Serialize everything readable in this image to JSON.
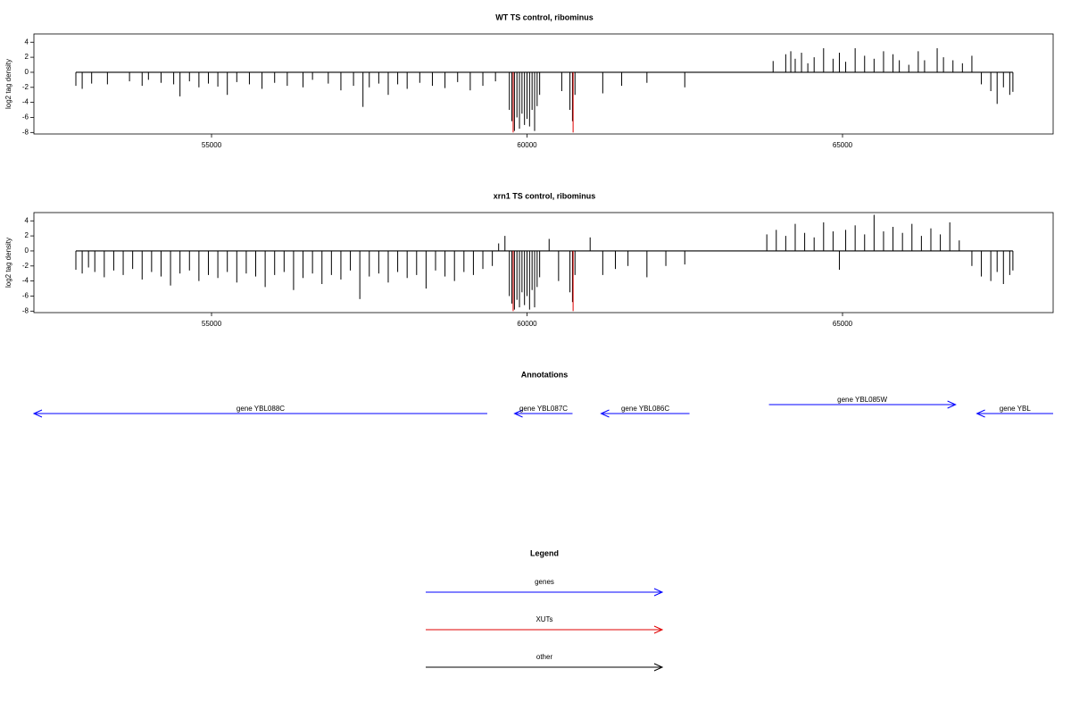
{
  "chart_data": [
    {
      "type": "bar",
      "title": "WT TS control, ribominus",
      "ylabel": "log2 tag density",
      "xlim": [
        52185,
        68338
      ],
      "ylim": [
        -8.2,
        5.1
      ],
      "xticks": [
        55000,
        60000,
        65000
      ],
      "yticks": [
        -8,
        -6,
        -4,
        -2,
        0,
        2,
        4
      ],
      "series": [
        {
          "color": "#000000",
          "x": [
            52850,
            52950,
            53100,
            53350,
            53700,
            53900,
            54000,
            54200,
            54400,
            54500,
            54650,
            54800,
            54950,
            55100,
            55250,
            55400,
            55600,
            55800,
            56000,
            56200,
            56450,
            56600,
            56850,
            57050,
            57250,
            57400,
            57500,
            57650,
            57800,
            57950,
            58100,
            58300,
            58500,
            58700,
            58900,
            59100,
            59300,
            59500,
            59720,
            59760,
            59800,
            59840,
            59880,
            59920,
            59960,
            60000,
            60040,
            60080,
            60120,
            60160,
            60200,
            60550,
            60680,
            60720,
            60760,
            61200,
            61500,
            61900,
            62500,
            63900,
            64100,
            64180,
            64250,
            64350,
            64450,
            64550,
            64700,
            64850,
            64950,
            65050,
            65200,
            65350,
            65500,
            65650,
            65800,
            65900,
            66050,
            66200,
            66300,
            66500,
            66600,
            66750,
            66900,
            67050,
            67200,
            67350,
            67450,
            67550,
            67650,
            67700
          ],
          "values": [
            -1.8,
            -2.2,
            -1.5,
            -1.6,
            -1.2,
            -1.8,
            -1.0,
            -1.4,
            -1.6,
            -3.2,
            -1.2,
            -2.0,
            -1.5,
            -1.9,
            -3.0,
            -1.3,
            -1.6,
            -2.2,
            -1.4,
            -1.8,
            -2.0,
            -1.0,
            -1.5,
            -2.4,
            -1.8,
            -4.6,
            -2.0,
            -1.5,
            -3.0,
            -1.6,
            -2.2,
            -1.4,
            -1.8,
            -2.1,
            -1.3,
            -2.4,
            -1.8,
            -1.2,
            -5.0,
            -6.5,
            -7.8,
            -6.0,
            -7.5,
            -5.5,
            -7.0,
            -6.2,
            -7.2,
            -5.0,
            -7.8,
            -4.5,
            -3.0,
            -2.5,
            -5.0,
            -6.5,
            -3.0,
            -2.8,
            -1.8,
            -1.4,
            -2.0,
            1.5,
            2.4,
            2.8,
            1.8,
            2.6,
            1.2,
            2.0,
            3.2,
            1.8,
            2.6,
            1.4,
            3.2,
            2.2,
            1.8,
            2.8,
            2.4,
            1.6,
            1.0,
            2.8,
            1.6,
            3.2,
            2.0,
            1.6,
            1.2,
            2.2,
            -1.6,
            -2.5,
            -4.2,
            -2.0,
            -3.0,
            -2.6
          ]
        },
        {
          "color": "#e00000",
          "x": [
            59780,
            60730
          ],
          "values": [
            -8,
            -8
          ]
        }
      ]
    },
    {
      "type": "bar",
      "title": "xrn1 TS control, ribominus",
      "ylabel": "log2 tag density",
      "xlim": [
        52185,
        68338
      ],
      "ylim": [
        -8.2,
        5.1
      ],
      "xticks": [
        55000,
        60000,
        65000
      ],
      "yticks": [
        -8,
        -6,
        -4,
        -2,
        0,
        2,
        4
      ],
      "series": [
        {
          "color": "#000000",
          "x": [
            52850,
            52950,
            53050,
            53150,
            53300,
            53450,
            53600,
            53750,
            53900,
            54050,
            54200,
            54350,
            54500,
            54650,
            54800,
            54950,
            55100,
            55250,
            55400,
            55550,
            55700,
            55850,
            56000,
            56150,
            56300,
            56450,
            56600,
            56750,
            56900,
            57050,
            57200,
            57350,
            57500,
            57650,
            57800,
            57950,
            58100,
            58250,
            58400,
            58550,
            58700,
            58850,
            59000,
            59150,
            59300,
            59450,
            59550,
            59650,
            59720,
            59760,
            59800,
            59840,
            59880,
            59920,
            59960,
            60000,
            60040,
            60080,
            60120,
            60160,
            60200,
            60350,
            60500,
            60680,
            60720,
            60760,
            61000,
            61200,
            61400,
            61600,
            61900,
            62200,
            62500,
            63800,
            63950,
            64100,
            64250,
            64400,
            64550,
            64700,
            64850,
            64950,
            65050,
            65200,
            65350,
            65500,
            65650,
            65800,
            65950,
            66100,
            66250,
            66400,
            66550,
            66700,
            66850,
            67050,
            67200,
            67350,
            67450,
            67550,
            67650,
            67700
          ],
          "values": [
            -2.5,
            -3.0,
            -2.2,
            -2.8,
            -3.5,
            -2.6,
            -3.2,
            -2.4,
            -3.8,
            -2.8,
            -3.4,
            -4.6,
            -3.0,
            -2.6,
            -4.0,
            -3.2,
            -3.6,
            -2.8,
            -4.2,
            -3.0,
            -3.4,
            -4.8,
            -3.2,
            -2.8,
            -5.2,
            -3.6,
            -3.0,
            -4.4,
            -3.2,
            -3.8,
            -2.6,
            -6.4,
            -3.4,
            -3.0,
            -4.2,
            -2.8,
            -3.6,
            -3.2,
            -5.0,
            -2.6,
            -3.4,
            -4.0,
            -2.8,
            -3.2,
            -2.4,
            -2.0,
            1.0,
            2.0,
            -6.0,
            -7.0,
            -7.8,
            -6.5,
            -7.5,
            -5.5,
            -7.2,
            -6.0,
            -7.8,
            -5.2,
            -7.5,
            -4.8,
            -3.5,
            1.6,
            -4.0,
            -5.5,
            -6.8,
            -3.2,
            1.8,
            -3.2,
            -2.4,
            -2.0,
            -3.5,
            -2.0,
            -1.8,
            2.2,
            2.8,
            2.0,
            3.6,
            2.4,
            1.8,
            3.8,
            2.6,
            -2.5,
            2.8,
            3.4,
            2.2,
            4.8,
            2.6,
            3.2,
            2.4,
            3.6,
            2.0,
            3.0,
            2.2,
            3.8,
            1.4,
            -2.0,
            -3.4,
            -4.0,
            -2.8,
            -4.4,
            -3.2,
            -2.6
          ]
        },
        {
          "color": "#e00000",
          "x": [
            59780,
            60730
          ],
          "values": [
            -8,
            -8
          ]
        }
      ]
    }
  ],
  "annotations": {
    "title": "Annotations",
    "color": "#0000ff",
    "genes": [
      {
        "label": "gene YBL088C",
        "start": 59370,
        "end": 52185
      },
      {
        "label": "gene YBL087C",
        "start": 60721,
        "end": 59802
      },
      {
        "label": "gene YBL086C",
        "start": 62575,
        "end": 61174
      },
      {
        "label": "gene YBL085W",
        "start": 63834,
        "end": 66791
      },
      {
        "label": "gene YBL",
        "start": 68338,
        "end": 67130
      }
    ]
  },
  "legend": {
    "title": "Legend",
    "items": [
      {
        "label": "genes",
        "color": "#0000ff"
      },
      {
        "label": "XUTs",
        "color": "#e00000"
      },
      {
        "label": "other",
        "color": "#000000"
      }
    ]
  }
}
